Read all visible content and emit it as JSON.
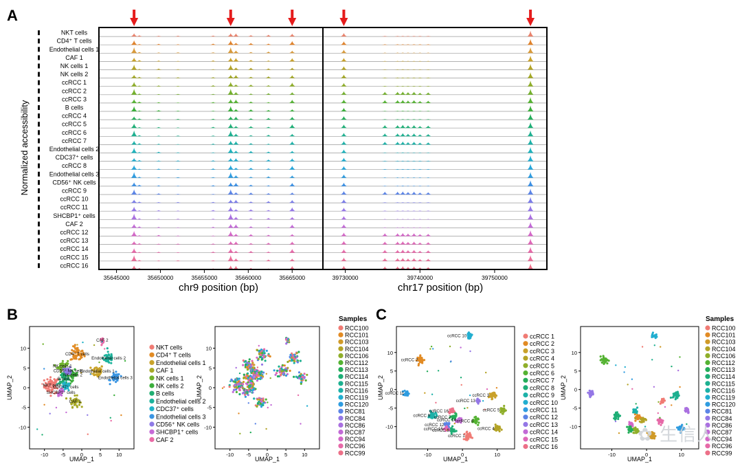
{
  "panels": {
    "A": "A",
    "B": "B",
    "C": "C"
  },
  "panelA": {
    "ylabel": "Normalized accessibility",
    "tracks": [
      {
        "label": "NKT cells",
        "color": "#e8826c"
      },
      {
        "label": "CD4⁺ T cells",
        "color": "#e0822a"
      },
      {
        "label": "Endothelial cells 1",
        "color": "#d89a3b"
      },
      {
        "label": "CAF 1",
        "color": "#c9a12a"
      },
      {
        "label": "NK cells 1",
        "color": "#b3a326"
      },
      {
        "label": "NK cells 2",
        "color": "#a3a824"
      },
      {
        "label": "ccRCC 1",
        "color": "#8fae2a"
      },
      {
        "label": "ccRCC 2",
        "color": "#74b12c"
      },
      {
        "label": "ccRCC 3",
        "color": "#54b232"
      },
      {
        "label": "B cells",
        "color": "#3aae3a"
      },
      {
        "label": "ccRCC 4",
        "color": "#25ad5a"
      },
      {
        "label": "ccRCC 5",
        "color": "#1eae76"
      },
      {
        "label": "ccRCC 6",
        "color": "#1db090"
      },
      {
        "label": "ccRCC 7",
        "color": "#1cb1a8"
      },
      {
        "label": "Endothelial cells 2",
        "color": "#1eb3bd"
      },
      {
        "label": "CDC37⁺ cells",
        "color": "#22aed0"
      },
      {
        "label": "ccRCC 8",
        "color": "#26a6db"
      },
      {
        "label": "Endothelial cells 3",
        "color": "#2f9ce0"
      },
      {
        "label": "CD56⁺ NK cells",
        "color": "#3a8fe3"
      },
      {
        "label": "ccRCC 9",
        "color": "#5b84e6"
      },
      {
        "label": "ccRCC 10",
        "color": "#7a7ce8"
      },
      {
        "label": "ccRCC 11",
        "color": "#9477e6"
      },
      {
        "label": "SHCBP1⁺ cells",
        "color": "#aa70e0"
      },
      {
        "label": "CAF 2",
        "color": "#c26ad6"
      },
      {
        "label": "ccRCC 12",
        "color": "#d467c8"
      },
      {
        "label": "ccRCC 13",
        "color": "#df67b8"
      },
      {
        "label": "ccRCC 14",
        "color": "#e669a8"
      },
      {
        "label": "ccRCC 15",
        "color": "#ea6c98"
      },
      {
        "label": "ccRCC 16",
        "color": "#ec7088"
      }
    ],
    "left": {
      "xlabel": "chr9 position (bp)",
      "xlim": [
        35643000,
        35668500
      ],
      "ticks": [
        {
          "v": 35645000,
          "t": "35645000"
        },
        {
          "v": 35650000,
          "t": "35650000"
        },
        {
          "v": 35655000,
          "t": "35655000"
        },
        {
          "v": 35660000,
          "t": "35660000"
        },
        {
          "v": 35665000,
          "t": "35665000"
        }
      ],
      "arrows": [
        35647000,
        35658000,
        35665000
      ],
      "peaks": [
        [
          35647000,
          1.0
        ],
        [
          35647600,
          0.25
        ],
        [
          35649800,
          0.2
        ],
        [
          35652000,
          0.15
        ],
        [
          35656000,
          0.2
        ],
        [
          35658000,
          1.0
        ],
        [
          35658600,
          0.6
        ],
        [
          35660300,
          0.35
        ],
        [
          35662300,
          0.3
        ],
        [
          35665000,
          0.65
        ]
      ]
    },
    "right": {
      "xlabel": "chr17 position (bp)",
      "xlim": [
        39727000,
        39757000
      ],
      "ticks": [
        {
          "v": 39730000,
          "t": "39730000"
        },
        {
          "v": 39740000,
          "t": "39740000"
        },
        {
          "v": 39750000,
          "t": "39750000"
        }
      ],
      "arrows": [
        39729800,
        39754800
      ],
      "peaks": [
        [
          39729800,
          0.6
        ],
        [
          39735300,
          0.5
        ],
        [
          39737000,
          0.5
        ],
        [
          39737700,
          0.55
        ],
        [
          39738400,
          0.45
        ],
        [
          39739200,
          0.5
        ],
        [
          39740000,
          0.35
        ],
        [
          39741100,
          0.4
        ],
        [
          39754800,
          1.0
        ]
      ],
      "cluster_rows": [
        "ccRCC 2",
        "ccRCC 3",
        "ccRCC 5",
        "ccRCC 6",
        "ccRCC 7",
        "ccRCC 9",
        "ccRCC 12",
        "ccRCC 13",
        "ccRCC 14",
        "ccRCC 15",
        "ccRCC 16"
      ]
    }
  },
  "panelB": {
    "xlabel": "UMAP_1",
    "ylabel": "UMAP_2",
    "xticks": [
      -10,
      -5,
      0,
      5,
      10
    ],
    "yticks": [
      -10,
      -5,
      0,
      5,
      10
    ],
    "clusters": [
      {
        "name": "NKT cells",
        "label": "NKT cells",
        "x": -8.0,
        "y": 0.6,
        "r": 2.4,
        "color": "#f07b74"
      },
      {
        "name": "CD4+ T cells",
        "label": "CD4⁺ T cells",
        "x": -1.2,
        "y": 8.5,
        "r": 2.2,
        "color": "#e28b24"
      },
      {
        "name": "Endothelial cells 1",
        "label": "Endothelial cells 1",
        "x": 4.2,
        "y": 4.2,
        "r": 1.9,
        "color": "#c9a32a"
      },
      {
        "name": "CAF 1",
        "label": "CAF 1",
        "x": -1.8,
        "y": -3.5,
        "r": 1.6,
        "color": "#a7a928"
      },
      {
        "name": "NK cells 1",
        "label": "NK cells 1",
        "x": -5.2,
        "y": 5.5,
        "r": 1.7,
        "color": "#6fb22d"
      },
      {
        "name": "NK cells 2",
        "label": "NK cells 2",
        "x": -2.4,
        "y": 3.2,
        "r": 1.5,
        "color": "#3cae3c"
      },
      {
        "name": "B cells",
        "label": "B cells",
        "x": -4.8,
        "y": 2.3,
        "r": 1.6,
        "color": "#20ae72"
      },
      {
        "name": "Endothelial cells 2",
        "label": "Endothelial cells 2",
        "x": 7.2,
        "y": 7.5,
        "r": 1.8,
        "color": "#1db39c"
      },
      {
        "name": "CDC37+ cells",
        "label": "CDC37⁺ cells",
        "x": -4.3,
        "y": 0.2,
        "r": 1.3,
        "color": "#22b3c8"
      },
      {
        "name": "Endothelial cells 3",
        "label": "Endothelial cells 3",
        "x": 9.0,
        "y": 2.5,
        "r": 1.5,
        "color": "#3b95e2"
      },
      {
        "name": "CD56+ NK cells",
        "label": "CD56⁺ NK cells",
        "x": -3.6,
        "y": 4.3,
        "r": 1.1,
        "color": "#8f7ae6"
      },
      {
        "name": "SHCBP1+ cells",
        "label": "SHCBP1⁺ cells",
        "x": -5.6,
        "y": -1.2,
        "r": 1.0,
        "color": "#c66ad6"
      },
      {
        "name": "CAF 2",
        "label": "CAF 2",
        "x": 5.5,
        "y": 12.0,
        "r": 0.7,
        "color": "#ea6aa6"
      }
    ],
    "legend_title": "Samples"
  },
  "panelC": {
    "xlabel": "UMAP_1",
    "ylabel": "UMAP_2",
    "xticks": [
      -10,
      0,
      10
    ],
    "yticks": [
      -10,
      -5,
      0,
      5,
      10
    ],
    "clusters": [
      {
        "name": "ccRCC 1",
        "x": 1.5,
        "y": -12.5,
        "r": 1.2,
        "color": "#f07b74"
      },
      {
        "name": "ccRCC 2",
        "x": -12.0,
        "y": 8.0,
        "r": 1.2,
        "color": "#e28b24"
      },
      {
        "name": "ccRCC 3",
        "x": 8.5,
        "y": -1.5,
        "r": 1.1,
        "color": "#c9a12a"
      },
      {
        "name": "ccRCC 4",
        "x": 10.0,
        "y": -10.5,
        "r": 1.1,
        "color": "#b3a326"
      },
      {
        "name": "ccRCC 5",
        "x": 11.5,
        "y": -5.5,
        "r": 1.0,
        "color": "#8fae2a"
      },
      {
        "name": "ccRCC 6",
        "x": 4.0,
        "y": -8.5,
        "r": 1.0,
        "color": "#54b232"
      },
      {
        "name": "ccRCC 7",
        "x": -2.5,
        "y": -7.5,
        "r": 1.0,
        "color": "#25ad5a"
      },
      {
        "name": "ccRCC 8",
        "x": -3.0,
        "y": -11.0,
        "r": 1.0,
        "color": "#1eae76"
      },
      {
        "name": "ccRCC 9",
        "x": -8.5,
        "y": -7.0,
        "r": 1.2,
        "color": "#1cb1a8"
      },
      {
        "name": "ccRCC 10",
        "x": 2.0,
        "y": 14.5,
        "r": 0.8,
        "color": "#22aed0"
      },
      {
        "name": "ccRCC 11",
        "x": -16.0,
        "y": -1.0,
        "r": 0.9,
        "color": "#2f9ce0"
      },
      {
        "name": "ccRCC 12",
        "x": -4.5,
        "y": -9.5,
        "r": 0.8,
        "color": "#5b84e6"
      },
      {
        "name": "ccRCC 13",
        "x": 4.5,
        "y": -3.0,
        "r": 0.8,
        "color": "#9477e6"
      },
      {
        "name": "ccRCC 14",
        "x": -1.0,
        "y": -8.2,
        "r": 0.8,
        "color": "#c26ad6"
      },
      {
        "name": "ccRCC 15",
        "x": -4.8,
        "y": -10.6,
        "r": 0.8,
        "color": "#df67b8"
      },
      {
        "name": "ccRCC 16",
        "x": -3.2,
        "y": -5.8,
        "r": 0.8,
        "color": "#ec7088"
      }
    ],
    "legend_title": "Samples"
  },
  "samples": [
    {
      "name": "RCC100",
      "color": "#f07b74"
    },
    {
      "name": "RCC101",
      "color": "#e28b24"
    },
    {
      "name": "RCC103",
      "color": "#d09a28"
    },
    {
      "name": "RCC104",
      "color": "#b3a326"
    },
    {
      "name": "RCC106",
      "color": "#8fae2a"
    },
    {
      "name": "RCC112",
      "color": "#54b232"
    },
    {
      "name": "RCC113",
      "color": "#25ad5a"
    },
    {
      "name": "RCC114",
      "color": "#1eae76"
    },
    {
      "name": "RCC115",
      "color": "#1db090"
    },
    {
      "name": "RCC116",
      "color": "#1cb1a8"
    },
    {
      "name": "RCC119",
      "color": "#22aed0"
    },
    {
      "name": "RCC120",
      "color": "#2f9ce0"
    },
    {
      "name": "RCC81",
      "color": "#5b84e6"
    },
    {
      "name": "RCC84",
      "color": "#9477e6"
    },
    {
      "name": "RCC86",
      "color": "#aa70e0"
    },
    {
      "name": "RCC87",
      "color": "#c26ad6"
    },
    {
      "name": "RCC94",
      "color": "#d467c8"
    },
    {
      "name": "RCC96",
      "color": "#e669a8"
    },
    {
      "name": "RCC99",
      "color": "#ec7088"
    }
  ],
  "watermark": "生信人"
}
